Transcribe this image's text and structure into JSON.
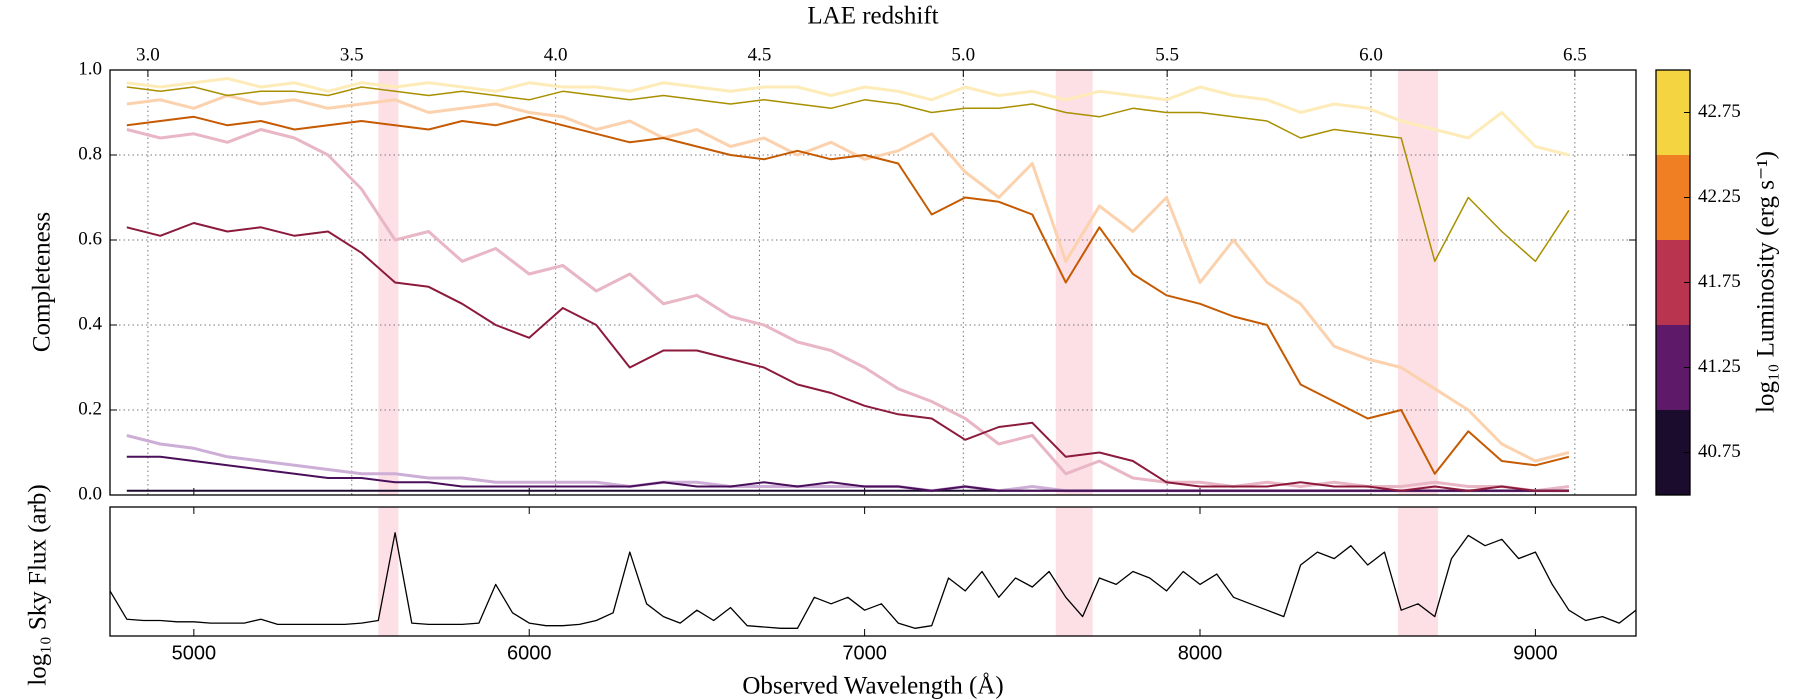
{
  "chart_data": [
    {
      "type": "line",
      "top_axis_label": "LAE redshift",
      "ylabel": "Completeness",
      "x": [
        4800,
        4900,
        5000,
        5100,
        5200,
        5300,
        5400,
        5500,
        5600,
        5700,
        5800,
        5900,
        6000,
        6100,
        6200,
        6300,
        6400,
        6500,
        6600,
        6700,
        6800,
        6900,
        7000,
        7100,
        7200,
        7300,
        7400,
        7500,
        7600,
        7700,
        7800,
        7900,
        8000,
        8100,
        8200,
        8300,
        8400,
        8500,
        8600,
        8700,
        8800,
        8900,
        9000,
        9100
      ],
      "xlim": [
        4750,
        9300
      ],
      "xticks": [
        5000,
        6000,
        7000,
        8000,
        9000
      ],
      "x2lim": [
        2.907,
        6.65
      ],
      "x2ticks": [
        {
          "value": 3,
          "label": "3.0"
        },
        3.5,
        {
          "value": 4,
          "label": "4.0"
        },
        4.5,
        {
          "value": 5,
          "label": "5.0"
        },
        5.5,
        {
          "value": 6,
          "label": "6.0"
        },
        6.5
      ],
      "ylim": [
        0,
        1
      ],
      "yticks": [
        {
          "value": 0,
          "label": "0.0"
        },
        0.2,
        0.4,
        0.6,
        0.8,
        {
          "value": 1,
          "label": "1.0"
        }
      ],
      "grid": true,
      "shaded_regions": [
        [
          5550,
          5610
        ],
        [
          7570,
          7680
        ],
        [
          8590,
          8710
        ]
      ],
      "shade_color": "#fde0e6",
      "series": [
        {
          "color": "#fdebb8",
          "linewidth": 3,
          "values": [
            0.97,
            0.96,
            0.97,
            0.98,
            0.96,
            0.97,
            0.95,
            0.97,
            0.96,
            0.97,
            0.96,
            0.95,
            0.97,
            0.96,
            0.96,
            0.95,
            0.97,
            0.96,
            0.95,
            0.96,
            0.96,
            0.94,
            0.96,
            0.95,
            0.93,
            0.96,
            0.94,
            0.95,
            0.93,
            0.95,
            0.94,
            0.93,
            0.96,
            0.94,
            0.93,
            0.9,
            0.92,
            0.91,
            0.88,
            0.86,
            0.84,
            0.9,
            0.82,
            0.8
          ]
        },
        {
          "color": "#fbd2ad",
          "linewidth": 3,
          "values": [
            0.92,
            0.93,
            0.91,
            0.94,
            0.92,
            0.93,
            0.91,
            0.92,
            0.93,
            0.9,
            0.91,
            0.92,
            0.9,
            0.89,
            0.86,
            0.88,
            0.84,
            0.86,
            0.82,
            0.84,
            0.8,
            0.83,
            0.79,
            0.81,
            0.85,
            0.76,
            0.7,
            0.78,
            0.55,
            0.68,
            0.62,
            0.7,
            0.5,
            0.6,
            0.5,
            0.45,
            0.35,
            0.32,
            0.3,
            0.25,
            0.2,
            0.12,
            0.08,
            0.1
          ]
        },
        {
          "color": "#e8b6c5",
          "linewidth": 3,
          "values": [
            0.86,
            0.84,
            0.85,
            0.83,
            0.86,
            0.84,
            0.8,
            0.72,
            0.6,
            0.62,
            0.55,
            0.58,
            0.52,
            0.54,
            0.48,
            0.52,
            0.45,
            0.47,
            0.42,
            0.4,
            0.36,
            0.34,
            0.3,
            0.25,
            0.22,
            0.18,
            0.12,
            0.14,
            0.05,
            0.08,
            0.04,
            0.03,
            0.03,
            0.02,
            0.03,
            0.02,
            0.03,
            0.02,
            0.02,
            0.03,
            0.02,
            0.02,
            0.01,
            0.02
          ]
        },
        {
          "color": "#cdaed6",
          "linewidth": 3,
          "values": [
            0.14,
            0.12,
            0.11,
            0.09,
            0.08,
            0.07,
            0.06,
            0.05,
            0.05,
            0.04,
            0.04,
            0.03,
            0.03,
            0.03,
            0.03,
            0.02,
            0.03,
            0.03,
            0.02,
            0.02,
            0.02,
            0.02,
            0.02,
            0.02,
            0.01,
            0.02,
            0.01,
            0.02,
            0.01,
            0.01,
            0.01,
            0.01,
            0.01,
            0.01,
            0.01,
            0.01,
            0.01,
            0.01,
            0.01,
            0.01,
            0.01,
            0.01,
            0.01,
            0.01
          ]
        },
        {
          "color": "#1b0c2e",
          "linewidth": 2,
          "values": [
            0.01,
            0.01,
            0.01,
            0.01,
            0.01,
            0.01,
            0.01,
            0.01,
            0.01,
            0.01,
            0.01,
            0.01,
            0.01,
            0.01,
            0.01,
            0.01,
            0.01,
            0.01,
            0.01,
            0.01,
            0.01,
            0.01,
            0.01,
            0.01,
            0.01,
            0.01,
            0.01,
            0.01,
            0.01,
            0.01,
            0.01,
            0.01,
            0.01,
            0.01,
            0.01,
            0.01,
            0.01,
            0.01,
            0.01,
            0.01,
            0.01,
            0.01,
            0.01,
            0.01
          ]
        },
        {
          "color": "#4a0f5a",
          "linewidth": 2,
          "values": [
            0.09,
            0.09,
            0.08,
            0.07,
            0.06,
            0.05,
            0.04,
            0.04,
            0.03,
            0.03,
            0.02,
            0.02,
            0.02,
            0.02,
            0.02,
            0.02,
            0.03,
            0.02,
            0.02,
            0.03,
            0.02,
            0.03,
            0.02,
            0.02,
            0.01,
            0.02,
            0.01,
            0.01,
            0.01,
            0.01,
            0.01,
            0.01,
            0.01,
            0.01,
            0.01,
            0.01,
            0.01,
            0.01,
            0.01,
            0.01,
            0.01,
            0.01,
            0.01,
            0.01
          ]
        },
        {
          "color": "#8c1a3c",
          "linewidth": 2,
          "values": [
            0.63,
            0.61,
            0.64,
            0.62,
            0.63,
            0.61,
            0.62,
            0.57,
            0.5,
            0.49,
            0.45,
            0.4,
            0.37,
            0.44,
            0.4,
            0.3,
            0.34,
            0.34,
            0.32,
            0.3,
            0.26,
            0.24,
            0.21,
            0.19,
            0.18,
            0.13,
            0.16,
            0.17,
            0.09,
            0.1,
            0.08,
            0.03,
            0.02,
            0.02,
            0.02,
            0.03,
            0.02,
            0.02,
            0.01,
            0.02,
            0.01,
            0.02,
            0.01,
            0.01
          ]
        },
        {
          "color": "#c55a00",
          "linewidth": 2,
          "values": [
            0.87,
            0.88,
            0.89,
            0.87,
            0.88,
            0.86,
            0.87,
            0.88,
            0.87,
            0.86,
            0.88,
            0.87,
            0.89,
            0.87,
            0.85,
            0.83,
            0.84,
            0.82,
            0.8,
            0.79,
            0.81,
            0.79,
            0.8,
            0.78,
            0.66,
            0.7,
            0.69,
            0.66,
            0.5,
            0.63,
            0.52,
            0.47,
            0.45,
            0.42,
            0.4,
            0.26,
            0.22,
            0.18,
            0.2,
            0.05,
            0.15,
            0.08,
            0.07,
            0.09
          ]
        },
        {
          "color": "#a89000",
          "linewidth": 1.5,
          "values": [
            0.96,
            0.95,
            0.96,
            0.94,
            0.95,
            0.95,
            0.94,
            0.96,
            0.95,
            0.94,
            0.95,
            0.94,
            0.93,
            0.95,
            0.94,
            0.93,
            0.94,
            0.93,
            0.92,
            0.93,
            0.92,
            0.91,
            0.93,
            0.92,
            0.9,
            0.91,
            0.91,
            0.92,
            0.9,
            0.89,
            0.91,
            0.9,
            0.9,
            0.89,
            0.88,
            0.84,
            0.86,
            0.85,
            0.84,
            0.55,
            0.7,
            0.62,
            0.55,
            0.67
          ]
        }
      ],
      "colorbar": {
        "label": "log₁₀ Luminosity (erg s⁻¹)",
        "bounds": [
          40.5,
          41.0,
          41.5,
          42.0,
          42.5,
          43.0
        ],
        "ticks": [
          40.75,
          41.25,
          41.75,
          42.25,
          42.75
        ],
        "colors": [
          "#1b0c2e",
          "#5e1a68",
          "#b8344f",
          "#f07e22",
          "#f5d442"
        ]
      }
    },
    {
      "type": "line",
      "ylabel": "log₁₀ Sky Flux (arb)",
      "xlabel": "Observed Wavelength (Å)",
      "color": "#000000",
      "x": [
        4750,
        4800,
        4850,
        4900,
        4950,
        5000,
        5050,
        5100,
        5150,
        5200,
        5250,
        5300,
        5350,
        5400,
        5450,
        5500,
        5550,
        5600,
        5650,
        5700,
        5750,
        5800,
        5850,
        5900,
        5950,
        6000,
        6050,
        6100,
        6150,
        6200,
        6250,
        6300,
        6350,
        6400,
        6450,
        6500,
        6550,
        6600,
        6650,
        6700,
        6750,
        6800,
        6850,
        6900,
        6950,
        7000,
        7050,
        7100,
        7150,
        7200,
        7250,
        7300,
        7350,
        7400,
        7450,
        7500,
        7550,
        7600,
        7650,
        7700,
        7750,
        7800,
        7850,
        7900,
        7950,
        8000,
        8050,
        8100,
        8150,
        8200,
        8250,
        8300,
        8350,
        8400,
        8450,
        8500,
        8550,
        8600,
        8650,
        8700,
        8750,
        8800,
        8850,
        8900,
        8950,
        9000,
        9050,
        9100,
        9150,
        9200,
        9250,
        9300
      ],
      "values": [
        0.35,
        0.13,
        0.12,
        0.12,
        0.11,
        0.11,
        0.1,
        0.1,
        0.1,
        0.13,
        0.09,
        0.09,
        0.09,
        0.09,
        0.09,
        0.1,
        0.12,
        0.8,
        0.1,
        0.09,
        0.09,
        0.09,
        0.1,
        0.4,
        0.18,
        0.1,
        0.08,
        0.08,
        0.09,
        0.12,
        0.18,
        0.65,
        0.25,
        0.15,
        0.1,
        0.2,
        0.12,
        0.22,
        0.08,
        0.07,
        0.06,
        0.06,
        0.3,
        0.25,
        0.3,
        0.2,
        0.25,
        0.1,
        0.06,
        0.08,
        0.45,
        0.35,
        0.5,
        0.3,
        0.45,
        0.38,
        0.5,
        0.3,
        0.15,
        0.45,
        0.4,
        0.5,
        0.45,
        0.35,
        0.5,
        0.4,
        0.48,
        0.3,
        0.25,
        0.2,
        0.15,
        0.55,
        0.65,
        0.6,
        0.7,
        0.55,
        0.65,
        0.2,
        0.25,
        0.15,
        0.6,
        0.78,
        0.7,
        0.75,
        0.6,
        0.65,
        0.4,
        0.2,
        0.12,
        0.15,
        0.1,
        0.2
      ],
      "xlim": [
        4750,
        9300
      ],
      "xticks": [
        5000,
        6000,
        7000,
        8000,
        9000
      ],
      "ylim": [
        0,
        1
      ]
    }
  ]
}
